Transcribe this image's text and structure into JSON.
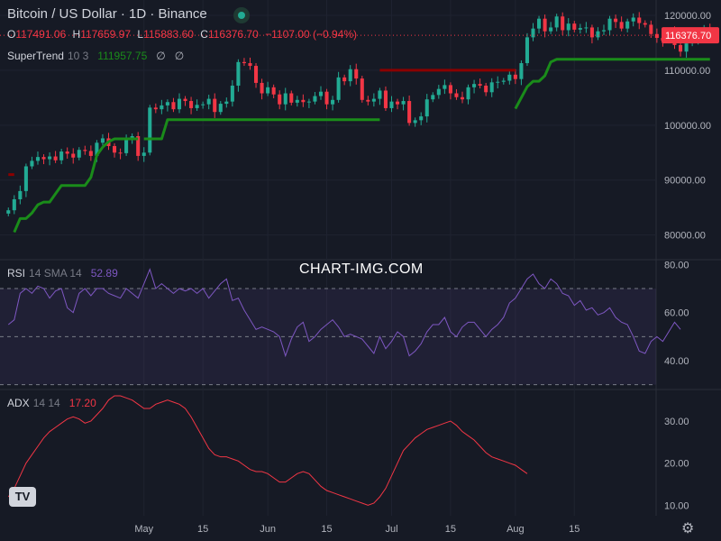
{
  "header": {
    "title": "Bitcoin / US Dollar · 1D · Binance",
    "ohlc": [
      {
        "k": "O",
        "v": "117491.06"
      },
      {
        "k": "H",
        "v": "117659.97"
      },
      {
        "k": "L",
        "v": "115883.60"
      },
      {
        "k": "C",
        "v": "116376.70"
      }
    ],
    "change": "−1107.00 (−0.94%)"
  },
  "supertrend": {
    "name": "SuperTrend",
    "params": "10 3",
    "value": "111957.75",
    "icon1": "∅",
    "icon2": "∅"
  },
  "rsi": {
    "name": "RSI",
    "params": "14 SMA 14",
    "value": "52.89"
  },
  "adx": {
    "name": "ADX",
    "params": "14 14",
    "value": "17.20"
  },
  "watermark": "CHART-IMG.COM",
  "logo_text": "TV",
  "gear_icon": "⚙",
  "colors": {
    "up": "#22ab94",
    "down": "#f23645",
    "st_up": "#1a8c1a",
    "st_down": "#8b0000",
    "rsi": "#7e57c2",
    "adx": "#f23645",
    "text": "#d1d4dc",
    "axis": "#b2b5be",
    "bg": "#161a25"
  },
  "chart_data": {
    "type": "candlestick",
    "price_axis": {
      "ticks": [
        "120000.00",
        "110000.00",
        "100000.00",
        "90000.00",
        "80000.00"
      ],
      "tick_values": [
        120000,
        110000,
        100000,
        90000,
        80000
      ],
      "range": [
        75500,
        122800
      ]
    },
    "last_price": "116376.70",
    "last_value": 116376.7,
    "x_axis": {
      "labels": [
        "May",
        "15",
        "Jun",
        "15",
        "Jul",
        "15",
        "Aug",
        "15"
      ],
      "label_days": [
        23,
        33,
        44,
        54,
        65,
        75,
        86,
        96
      ],
      "range": [
        -0.5,
        101
      ]
    },
    "closes": [
      84500,
      86500,
      88000,
      92500,
      93500,
      94200,
      93800,
      94300,
      93600,
      95200,
      94800,
      94100,
      95500,
      95300,
      94400,
      96800,
      97600,
      96200,
      95000,
      94900,
      97300,
      98000,
      94400,
      95000,
      103200,
      102900,
      103600,
      104200,
      102900,
      104800,
      104400,
      103100,
      103700,
      103800,
      104800,
      102400,
      103900,
      104300,
      107200,
      111500,
      111300,
      110800,
      107700,
      105800,
      106900,
      105600,
      103800,
      105800,
      104100,
      104600,
      104200,
      104300,
      105300,
      106100,
      103800,
      104600,
      108700,
      108000,
      110200,
      108500,
      104600,
      104300,
      104800,
      106300,
      103100,
      104300,
      103800,
      104400,
      100400,
      100900,
      101600,
      104700,
      105500,
      106600,
      107300,
      105800,
      105100,
      104700,
      106900,
      107500,
      107200,
      106000,
      107800,
      107900,
      108100,
      109200,
      108400,
      111300,
      116000,
      117600,
      119400,
      117100,
      117800,
      119800,
      117300,
      118500,
      117400,
      117700,
      117800,
      116000
    ],
    "closes_tail": [
      117100,
      117300,
      119400,
      118800,
      117600,
      118900,
      119600,
      118600,
      118300,
      116600,
      115900,
      115400,
      117000,
      114600,
      113400,
      114900,
      115400,
      116900,
      117491,
      116377
    ],
    "supertrend": [
      {
        "days": [
          0,
          1
        ],
        "values": [
          91000,
          91000
        ],
        "color": "st_down"
      },
      {
        "days": [
          1,
          2,
          3,
          4,
          5,
          6,
          7,
          8,
          9,
          10,
          11,
          12,
          13,
          14,
          15,
          16,
          17,
          18,
          19,
          20,
          21,
          22
        ],
        "values": [
          80500,
          83000,
          83000,
          84000,
          85500,
          86000,
          86000,
          87500,
          89000,
          89000,
          89000,
          89000,
          89000,
          90500,
          94500,
          96000,
          97000,
          97500,
          97500,
          97500,
          97500,
          97500
        ],
        "color": "st_up"
      },
      {
        "days": [
          23,
          24,
          25,
          26,
          27,
          28,
          29,
          30,
          31,
          32,
          33,
          34,
          35,
          36,
          37,
          38,
          39,
          40,
          41,
          42,
          43,
          44,
          45,
          46,
          47,
          48,
          49,
          50,
          51,
          52,
          53,
          54,
          55,
          56,
          57,
          58,
          59,
          60,
          61,
          62,
          63
        ],
        "values": [
          97500,
          97500,
          97500,
          97500,
          101000,
          101000,
          101000,
          101000,
          101000,
          101000,
          101000,
          101000,
          101000,
          101000,
          101000,
          101000,
          101000,
          101000,
          101000,
          101000,
          101000,
          101000,
          101000,
          101000,
          101000,
          101000,
          101000,
          101000,
          101000,
          101000,
          101000,
          101000,
          101000,
          101000,
          101000,
          101000,
          101000,
          101000,
          101000,
          101000,
          101000
        ],
        "color": "st_up"
      },
      {
        "days": [
          63,
          64,
          65,
          66,
          67,
          68,
          69,
          70,
          71,
          72,
          73,
          74,
          75,
          76,
          77,
          78,
          79,
          80,
          81,
          82,
          83,
          84,
          85,
          86
        ],
        "values": [
          110000,
          110000,
          110000,
          110000,
          110000,
          110000,
          110000,
          110000,
          110000,
          110000,
          110000,
          110000,
          110000,
          110000,
          110000,
          110000,
          110000,
          110000,
          110000,
          110000,
          110000,
          110000,
          110000,
          110000
        ],
        "color": "st_down"
      },
      {
        "days": [
          86,
          87,
          88,
          89,
          90,
          91,
          92,
          93,
          94,
          95,
          96,
          97,
          98,
          99,
          100,
          101,
          102,
          103,
          104,
          105,
          106,
          107,
          108,
          109,
          110,
          111,
          112,
          113,
          114,
          115,
          116,
          117,
          118,
          119
        ],
        "values": [
          103000,
          105000,
          107000,
          108000,
          108000,
          109000,
          111500,
          112000,
          112000,
          112000,
          112000,
          112000,
          112000,
          112000,
          112000,
          112000,
          112000,
          112000,
          112000,
          112000,
          112000,
          112000,
          112000,
          112000,
          112000,
          112000,
          112000,
          112000,
          112000,
          112000,
          112000,
          112000,
          112000,
          112000
        ],
        "color": "st_up"
      }
    ],
    "rsi": {
      "ticks": [
        "80.00",
        "60.00",
        "40.00"
      ],
      "tick_values": [
        80,
        60,
        40
      ],
      "range": [
        28,
        82
      ],
      "band": [
        70,
        30
      ],
      "values": [
        55,
        57,
        68,
        70,
        68,
        71,
        70,
        66,
        69,
        70,
        62,
        60,
        68,
        70,
        67,
        70,
        70,
        68,
        67,
        66,
        70,
        68,
        66,
        72,
        78,
        70,
        72,
        70,
        68,
        70,
        69,
        70,
        68,
        70,
        66,
        69,
        72,
        74,
        65,
        66,
        61,
        57,
        53,
        54,
        53,
        52,
        50,
        42,
        49,
        54,
        56,
        48,
        50,
        53,
        55,
        57,
        54,
        50,
        51,
        50,
        49,
        46,
        43,
        50,
        45,
        48,
        52,
        50,
        42,
        44,
        47,
        52,
        55,
        55,
        58,
        52,
        50,
        54,
        56,
        56,
        53,
        50,
        53,
        55,
        58,
        64,
        66,
        70,
        74,
        76,
        72,
        70,
        74,
        72,
        68,
        67,
        63,
        65,
        61,
        62,
        59,
        60,
        62,
        58,
        56,
        55,
        50,
        44,
        43,
        48,
        50,
        48,
        52,
        56,
        53
      ],
      "value_label": "52.89"
    },
    "adx": {
      "ticks": [
        "30.00",
        "20.00",
        "10.00"
      ],
      "tick_values": [
        30,
        20,
        10
      ],
      "range": [
        7.5,
        37.5
      ],
      "values": [
        12,
        14,
        17,
        20,
        22,
        24,
        26,
        27.5,
        28.5,
        29.5,
        30.5,
        31,
        30.5,
        29.5,
        30,
        31.5,
        33,
        35,
        36,
        36,
        35.5,
        35,
        34,
        33,
        33,
        34,
        34.5,
        35,
        34.5,
        34,
        33,
        31,
        28.5,
        26,
        23.5,
        22,
        21.5,
        21.5,
        21,
        20.5,
        19.5,
        18.5,
        18,
        18,
        17.5,
        16.5,
        15.5,
        15.5,
        16.5,
        17.5,
        18,
        17.5,
        16,
        14.5,
        13.5,
        13,
        12.5,
        12,
        11.5,
        11,
        10.5,
        10,
        10.5,
        12,
        14,
        17,
        20,
        23,
        24.5,
        26,
        27,
        28,
        28.5,
        29,
        29.5,
        30,
        29,
        27.5,
        26.5,
        25.5,
        24,
        22.5,
        21.5,
        21,
        20.5,
        20,
        19.5,
        18.5,
        17.5
      ],
      "value_label": "17.20"
    }
  }
}
